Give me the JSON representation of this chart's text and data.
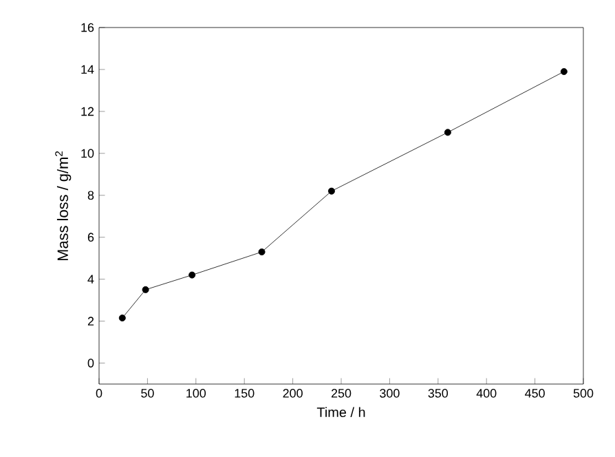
{
  "chart_data": {
    "type": "line",
    "xlabel": "Time / h",
    "ylabel": "Mass loss  / g/m$^{2}$",
    "x": [
      24,
      48,
      96,
      168,
      240,
      360,
      480
    ],
    "series": [
      {
        "color": "#000000",
        "values": [
          2.15,
          3.5,
          4.2,
          5.3,
          8.2,
          11.0,
          13.9
        ]
      }
    ],
    "xlim": [
      0,
      500
    ],
    "ylim": [
      -1,
      16
    ],
    "xticks": [
      0,
      50,
      100,
      150,
      200,
      250,
      300,
      350,
      400,
      450,
      500
    ],
    "yticks": [
      0,
      2,
      4,
      6,
      8,
      10,
      12,
      14,
      16
    ],
    "marker": "circle",
    "line_style": "solid",
    "grid": false
  }
}
